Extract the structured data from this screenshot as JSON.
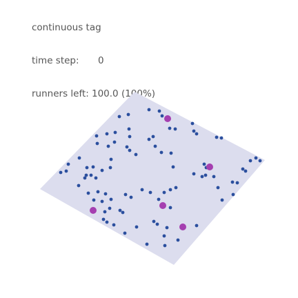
{
  "sim": {
    "title": "continuous tag",
    "time_step_label": "time step:",
    "time_step_value": "0",
    "runners_left_label": "runners left:",
    "runners_left_value": "100.0 (100%)"
  },
  "colors": {
    "arena_fill": "#dcddee",
    "runner": "#2b4f9e",
    "tagger": "#a53fb0"
  }
}
